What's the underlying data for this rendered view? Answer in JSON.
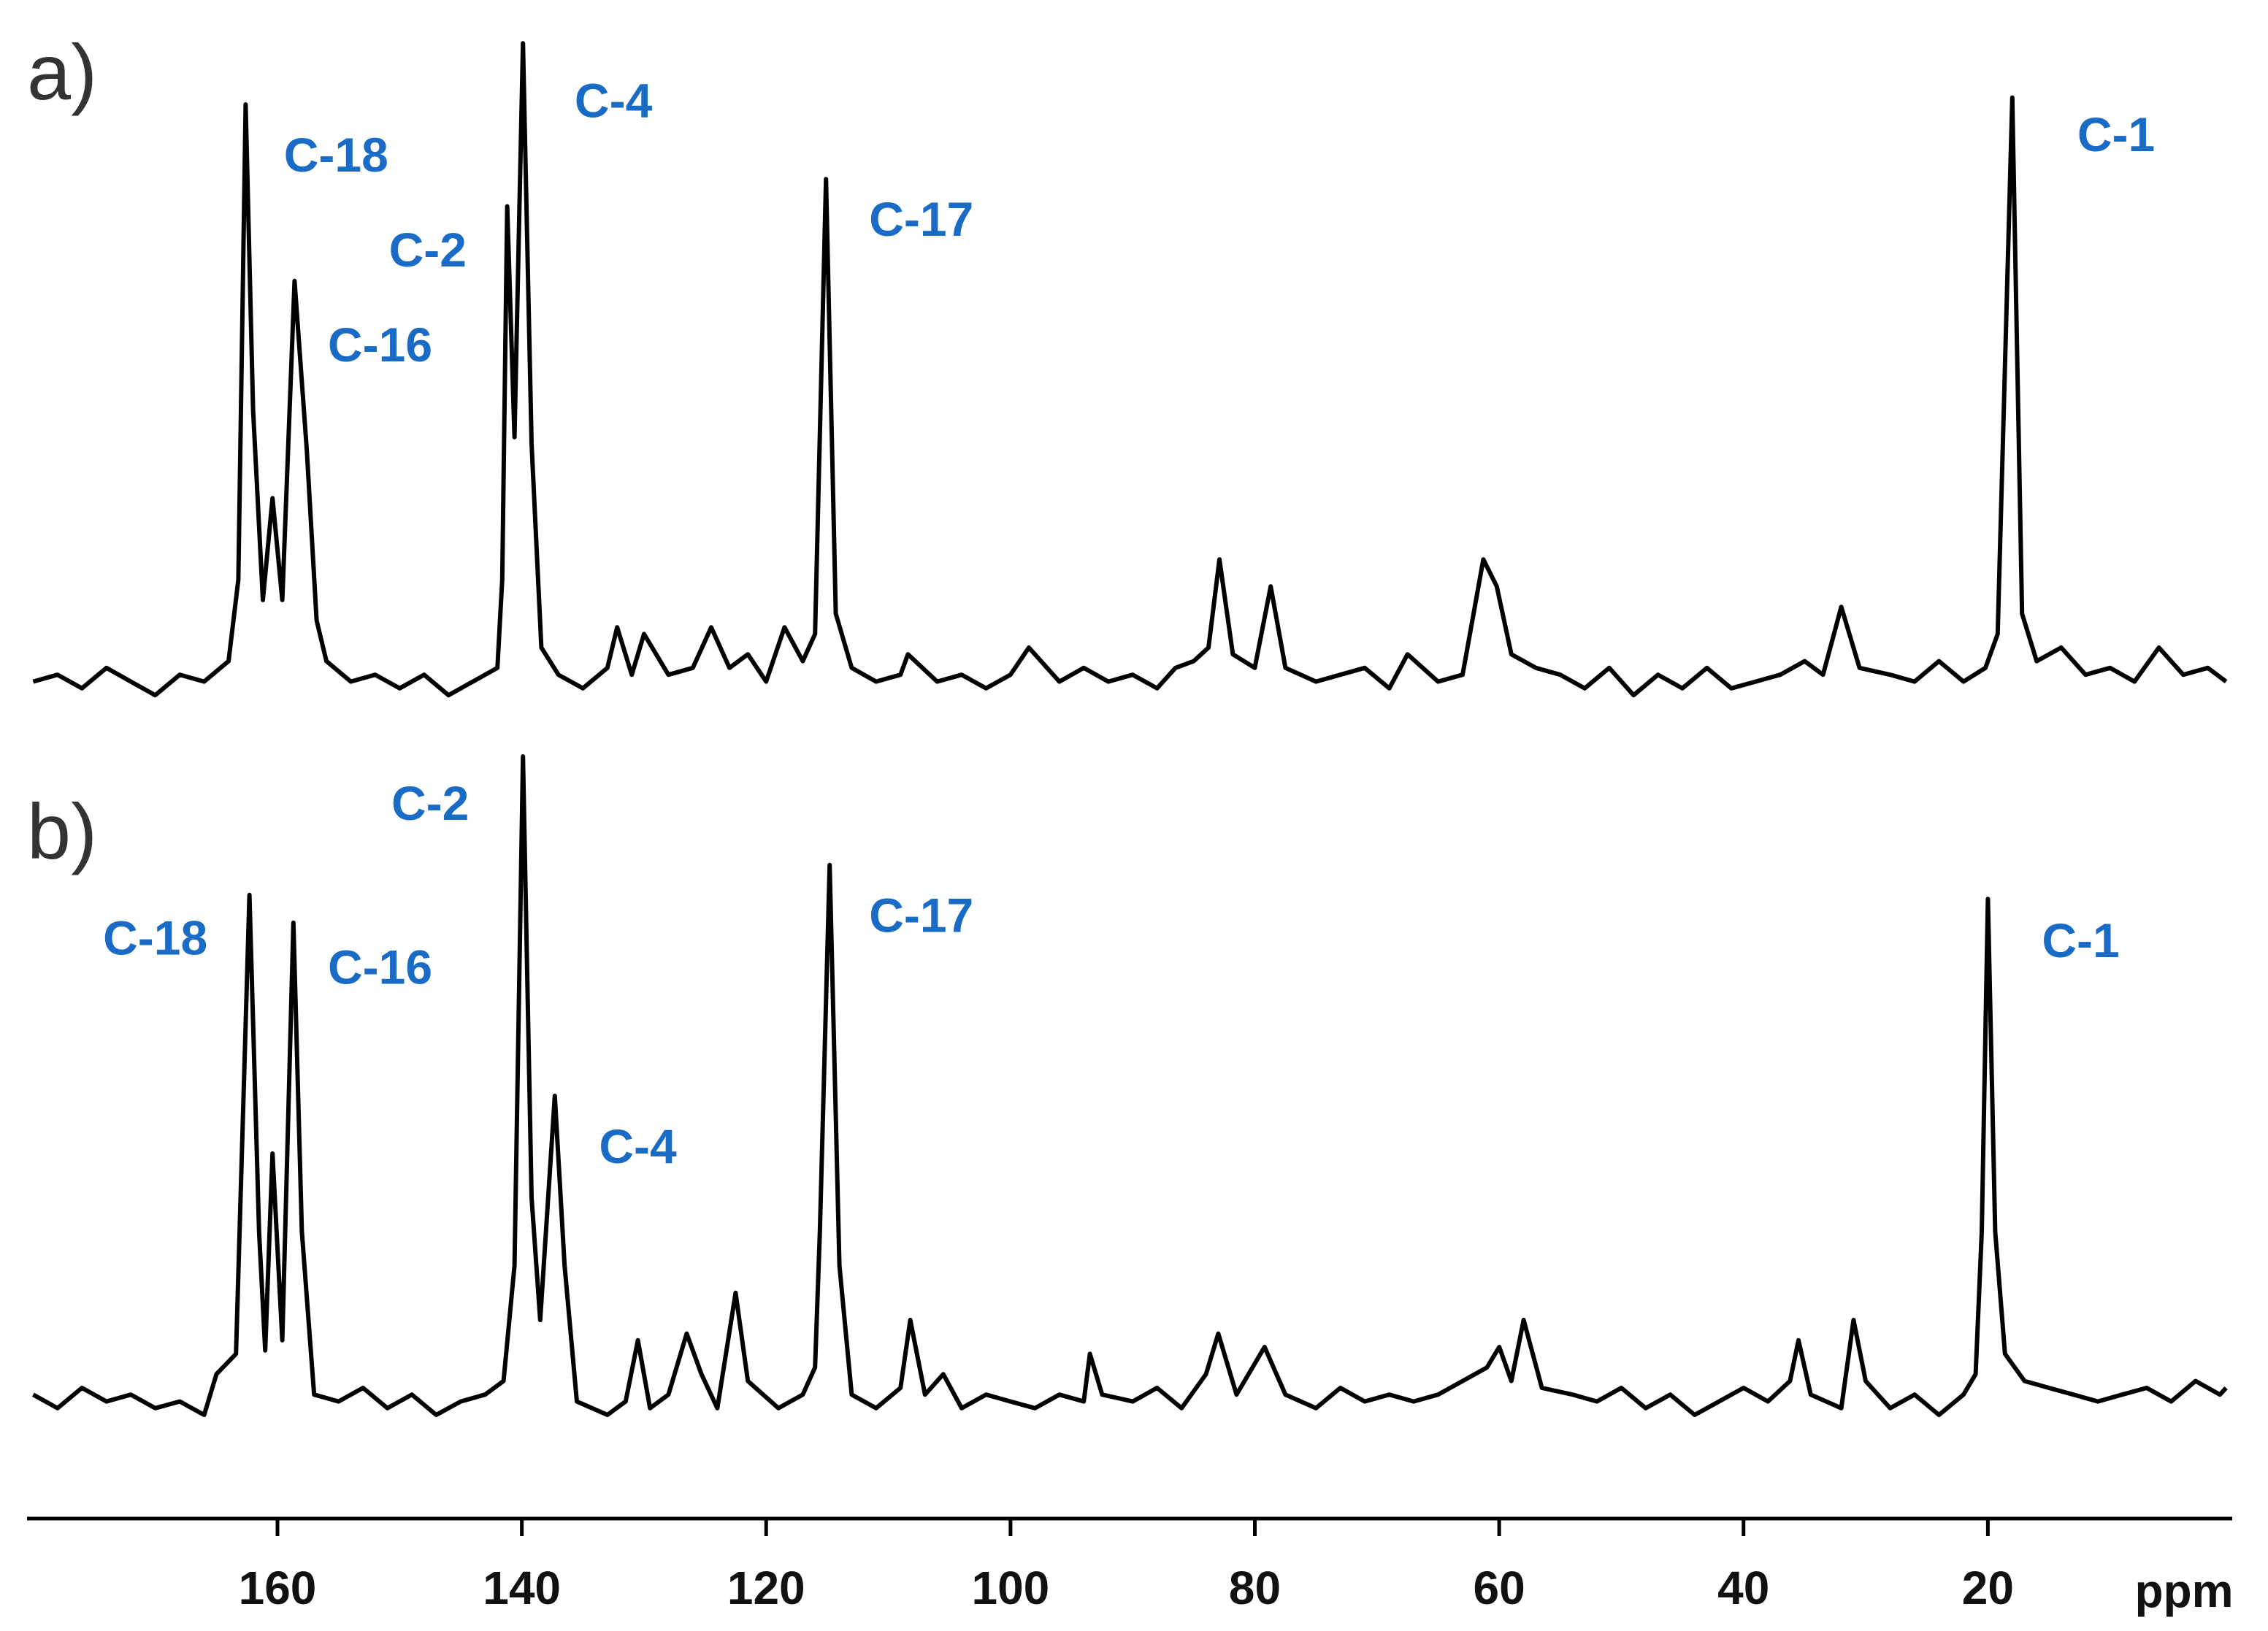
{
  "chart_data": {
    "type": "line",
    "xlabel": "ppm",
    "xlim": [
      180.5,
      0
    ],
    "xticks": [
      160,
      140,
      120,
      100,
      80,
      60,
      40,
      20
    ],
    "ylim": [
      0,
      100
    ],
    "series": [
      {
        "name": "a)",
        "color": "#000000",
        "x": [
          180,
          178,
          176,
          174,
          172,
          170,
          168,
          166,
          164,
          163.2,
          162.6,
          162,
          161.2,
          160.4,
          159.6,
          158.6,
          157.6,
          156.8,
          156,
          154,
          152,
          150,
          148,
          146,
          144,
          142,
          141.6,
          141.2,
          140.6,
          139.9,
          139.2,
          138.4,
          137,
          135,
          133,
          132.2,
          131,
          130,
          128,
          126,
          124.5,
          123,
          121.5,
          120,
          118.5,
          117,
          116,
          115.1,
          114.3,
          113,
          111,
          109,
          108.4,
          106,
          104,
          102,
          100,
          98.5,
          96,
          94,
          92,
          90,
          88,
          86.5,
          85,
          83.8,
          82.9,
          81.8,
          80,
          78.7,
          77.5,
          75,
          73,
          71,
          69,
          67.5,
          65,
          63,
          61.3,
          60.2,
          59,
          57,
          55,
          53,
          51,
          49,
          47,
          45,
          43,
          41,
          39,
          37,
          35,
          33.5,
          32,
          30.5,
          28,
          26,
          24,
          22,
          20.2,
          19.2,
          18,
          17.2,
          16,
          14,
          12,
          10,
          8,
          6,
          4,
          2,
          0.5
        ],
        "values": [
          5,
          6,
          4,
          7,
          5,
          3,
          6,
          5,
          8,
          20,
          90,
          45,
          17,
          32,
          17,
          64,
          39,
          14,
          8,
          5,
          6,
          4,
          6,
          3,
          5,
          7,
          20,
          75,
          41,
          99,
          40,
          10,
          6,
          4,
          7,
          13,
          6,
          12,
          6,
          7,
          13,
          7,
          9,
          5,
          13,
          8,
          12,
          79,
          15,
          7,
          5,
          6,
          9,
          5,
          6,
          4,
          6,
          10,
          5,
          7,
          5,
          6,
          4,
          7,
          8,
          10,
          23,
          9,
          7,
          19,
          7,
          5,
          6,
          7,
          4,
          9,
          5,
          6,
          23,
          19,
          9,
          7,
          6,
          4,
          7,
          3,
          6,
          4,
          7,
          4,
          5,
          6,
          8,
          6,
          16,
          7,
          6,
          5,
          8,
          5,
          7,
          12,
          91,
          15,
          8,
          10,
          6,
          7,
          5,
          10,
          6,
          7,
          5
        ]
      },
      {
        "name": "b)",
        "color": "#000000",
        "x": [
          180,
          178,
          176,
          174,
          172,
          170,
          168,
          166,
          165,
          163.4,
          162.3,
          161.5,
          161,
          160.4,
          159.6,
          158.7,
          158,
          157,
          155,
          153,
          151,
          149,
          147,
          145,
          143,
          141.5,
          140.6,
          139.9,
          139.2,
          138.5,
          137.3,
          136.5,
          135.5,
          133,
          131.5,
          130.5,
          129.5,
          128,
          126.5,
          125.3,
          124,
          122.5,
          121.5,
          119,
          117,
          116,
          115.6,
          114.8,
          114,
          113,
          111,
          109,
          108.2,
          107,
          105.5,
          104,
          102,
          100,
          98,
          96,
          94,
          93.5,
          92.5,
          90,
          88,
          86,
          84,
          83,
          81.5,
          79.2,
          77.5,
          75,
          73,
          71,
          69,
          67,
          65,
          63,
          61,
          60,
          59,
          58,
          56.5,
          54,
          52,
          50,
          48,
          46,
          44,
          42,
          40,
          38,
          36.2,
          35.5,
          34.5,
          32,
          31,
          30,
          28,
          26,
          24,
          22,
          21,
          20.5,
          20,
          19.4,
          18.6,
          17,
          15,
          13,
          11,
          9,
          7,
          5,
          3,
          1,
          0.5
        ],
        "values": [
          6,
          4,
          7,
          5,
          6,
          4,
          5,
          3,
          9,
          12,
          79.6,
          30,
          12.5,
          41.5,
          14,
          75.5,
          30,
          6,
          5,
          7,
          4,
          6,
          3,
          5,
          6,
          8,
          25,
          100,
          35,
          17,
          50,
          25,
          5,
          3,
          5,
          14,
          4,
          6,
          15,
          9,
          4,
          21,
          8,
          4,
          6,
          10,
          30,
          84,
          25,
          6,
          4,
          7,
          17,
          6,
          9,
          4,
          6,
          5,
          4,
          6,
          5,
          12,
          6,
          5,
          7,
          4,
          9,
          15,
          6,
          13,
          6,
          4,
          7,
          5,
          6,
          5,
          6,
          8,
          10,
          13,
          8,
          17,
          7,
          6,
          5,
          7,
          4,
          6,
          3,
          5,
          7,
          5,
          8,
          14,
          6,
          4,
          17,
          8,
          4,
          6,
          3,
          6,
          9,
          30,
          79,
          30,
          12,
          8,
          7,
          6,
          5,
          6,
          7,
          5,
          8,
          6,
          7
        ]
      }
    ],
    "annotations": [
      {
        "text": "C-18",
        "series": 0,
        "x": 155.2,
        "y": 82
      },
      {
        "text": "C-4",
        "series": 0,
        "x": 132.5,
        "y": 90
      },
      {
        "text": "C-2",
        "series": 0,
        "x": 147.7,
        "y": 68
      },
      {
        "text": "C-16",
        "series": 0,
        "x": 151.6,
        "y": 54
      },
      {
        "text": "C-17",
        "series": 0,
        "x": 107.3,
        "y": 72.5
      },
      {
        "text": "C-1",
        "series": 0,
        "x": 9.5,
        "y": 85
      },
      {
        "text": "C-18",
        "series": 1,
        "x": 170,
        "y": 72.7
      },
      {
        "text": "C-2",
        "series": 1,
        "x": 147.5,
        "y": 92.5
      },
      {
        "text": "C-16",
        "series": 1,
        "x": 151.6,
        "y": 68.4
      },
      {
        "text": "C-4",
        "series": 1,
        "x": 130.5,
        "y": 42
      },
      {
        "text": "C-17",
        "series": 1,
        "x": 107.3,
        "y": 76
      },
      {
        "text": "C-1",
        "series": 1,
        "x": 12.4,
        "y": 72.3
      }
    ]
  }
}
